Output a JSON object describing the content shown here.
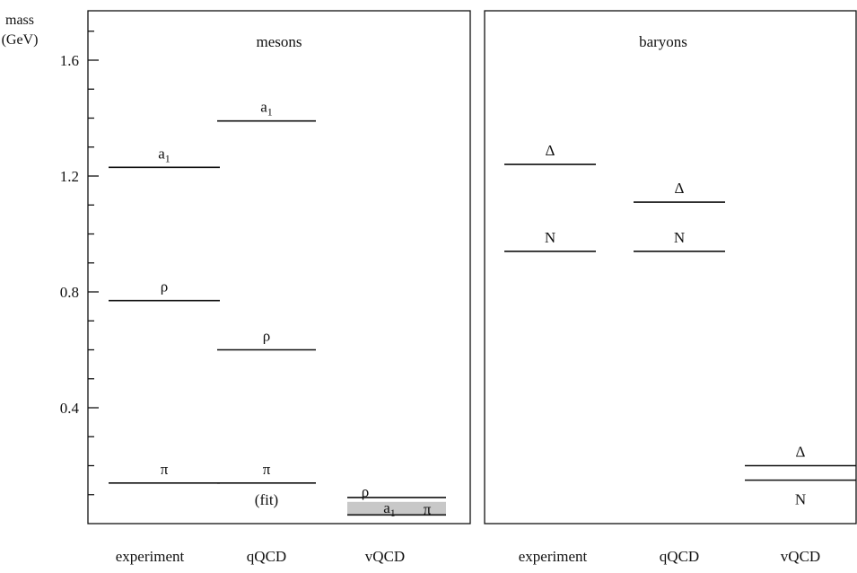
{
  "chart_data": {
    "type": "table",
    "ylabel": [
      "mass",
      "(GeV)"
    ],
    "ylim": [
      0,
      1.8
    ],
    "yticks": [
      "0.4",
      "0.8",
      "1.2",
      "1.6"
    ],
    "minor_tick_step": 0.1,
    "panels": [
      {
        "title": "mesons",
        "columns": [
          "experiment",
          "qQCD",
          "vQCD"
        ],
        "levels": [
          {
            "column": "experiment",
            "label": "π",
            "mass": 0.14
          },
          {
            "column": "experiment",
            "label": "ρ",
            "mass": 0.77
          },
          {
            "column": "experiment",
            "label": "a",
            "sub": "1",
            "mass": 1.23
          },
          {
            "column": "qQCD",
            "label": "π",
            "note": "(fit)",
            "mass": 0.14
          },
          {
            "column": "qQCD",
            "label": "ρ",
            "mass": 0.6
          },
          {
            "column": "qQCD",
            "label": "a",
            "sub": "1",
            "mass": 1.39
          },
          {
            "column": "vQCD",
            "label": "ρ",
            "mass": 0.09
          },
          {
            "column": "vQCD",
            "label": "a",
            "sub": "1",
            "band": [
              0.03,
              0.075
            ]
          },
          {
            "column": "vQCD",
            "label": "π",
            "mass": 0.03
          }
        ]
      },
      {
        "title": "baryons",
        "columns": [
          "experiment",
          "qQCD",
          "vQCD"
        ],
        "levels": [
          {
            "column": "experiment",
            "label": "N",
            "mass": 0.94
          },
          {
            "column": "experiment",
            "label": "Δ",
            "mass": 1.24
          },
          {
            "column": "qQCD",
            "label": "N",
            "mass": 0.94
          },
          {
            "column": "qQCD",
            "label": "Δ",
            "mass": 1.11
          },
          {
            "column": "vQCD",
            "label": "N",
            "mass": 0.15
          },
          {
            "column": "vQCD",
            "label": "Δ",
            "mass": 0.2
          }
        ]
      }
    ]
  }
}
